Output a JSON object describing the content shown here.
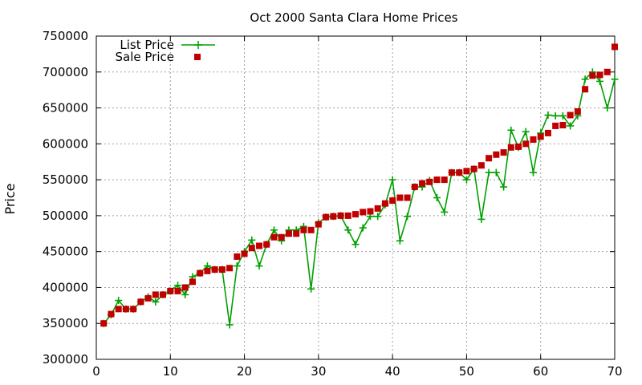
{
  "chart_data": {
    "type": "line",
    "title": "Oct 2000 Santa Clara Home Prices",
    "xlabel": "",
    "ylabel": "Price",
    "xlim": [
      0,
      70
    ],
    "ylim": [
      300000,
      750000
    ],
    "x_ticks": [
      0,
      10,
      20,
      30,
      40,
      50,
      60,
      70
    ],
    "y_ticks": [
      300000,
      350000,
      400000,
      450000,
      500000,
      550000,
      600000,
      650000,
      700000,
      750000
    ],
    "grid": true,
    "legend_position": "top-left",
    "x": [
      1,
      2,
      3,
      4,
      5,
      6,
      7,
      8,
      9,
      10,
      11,
      12,
      13,
      14,
      15,
      16,
      17,
      18,
      19,
      20,
      21,
      22,
      23,
      24,
      25,
      26,
      27,
      28,
      29,
      30,
      31,
      32,
      33,
      34,
      35,
      36,
      37,
      38,
      39,
      40,
      41,
      42,
      43,
      44,
      45,
      46,
      47,
      48,
      49,
      50,
      51,
      52,
      53,
      54,
      55,
      56,
      57,
      58,
      59,
      60,
      61,
      62,
      63,
      64,
      65,
      66,
      67,
      68,
      69,
      70
    ],
    "series": [
      {
        "name": "List Price",
        "style": "linespoints",
        "color": "#00a000",
        "marker": "plus",
        "values": [
          350000,
          362000,
          382000,
          370000,
          370000,
          380000,
          387000,
          380000,
          390000,
          395000,
          403000,
          390000,
          415000,
          420000,
          430000,
          425000,
          425000,
          348000,
          430000,
          450000,
          466000,
          430000,
          460000,
          480000,
          465000,
          480000,
          480000,
          485000,
          398000,
          490000,
          498000,
          499000,
          500000,
          480000,
          460000,
          483000,
          499000,
          499000,
          515000,
          550000,
          465000,
          499000,
          540000,
          540000,
          549000,
          525000,
          505000,
          560000,
          560000,
          550000,
          565000,
          495000,
          560000,
          560000,
          540000,
          619000,
          595000,
          617000,
          560000,
          615000,
          640000,
          639000,
          639000,
          625000,
          639000,
          690000,
          700000,
          687000,
          650000,
          690000
        ]
      },
      {
        "name": "Sale Price",
        "style": "points",
        "color": "#c00000",
        "marker": "square",
        "values": [
          350000,
          363000,
          370000,
          370000,
          370000,
          380000,
          385000,
          390000,
          390000,
          395000,
          395000,
          400000,
          408000,
          420000,
          423000,
          425000,
          425000,
          427000,
          443000,
          447000,
          455000,
          458000,
          460000,
          470000,
          470000,
          475000,
          475000,
          480000,
          480000,
          488000,
          498000,
          499000,
          500000,
          500000,
          502000,
          505000,
          506000,
          510000,
          517000,
          521000,
          525000,
          525000,
          540000,
          545000,
          547000,
          550000,
          550000,
          560000,
          560000,
          562000,
          565000,
          570000,
          580000,
          585000,
          588000,
          595000,
          596000,
          600000,
          606000,
          610000,
          615000,
          625000,
          626000,
          640000,
          645000,
          676000,
          695000,
          696000,
          700000,
          735000
        ]
      }
    ]
  }
}
